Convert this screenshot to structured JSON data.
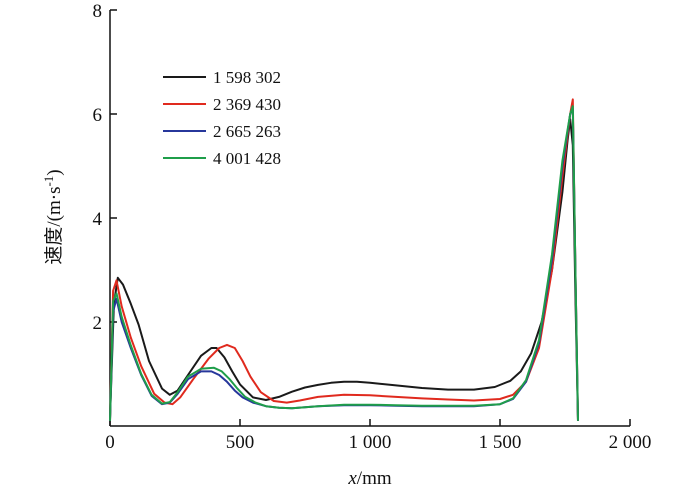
{
  "chart_data": {
    "type": "line",
    "xlabel_italic": "x",
    "xlabel_unit": "/mm",
    "ylabel_main": "速度/(m·s",
    "ylabel_sup": "-1",
    "ylabel_close": ")",
    "xlim": [
      0,
      2000
    ],
    "ylim": [
      0,
      8
    ],
    "xticks": [
      {
        "value": 0,
        "label": "0"
      },
      {
        "value": 500,
        "label": "500"
      },
      {
        "value": 1000,
        "label": "1 000"
      },
      {
        "value": 1500,
        "label": "1 500"
      },
      {
        "value": 2000,
        "label": "2 000"
      }
    ],
    "yticks": [
      {
        "value": 2,
        "label": "2"
      },
      {
        "value": 4,
        "label": "4"
      },
      {
        "value": 6,
        "label": "6"
      },
      {
        "value": 8,
        "label": "8"
      }
    ],
    "grid": false,
    "legend_position": "top-left",
    "series": [
      {
        "name": "1 598 302",
        "color": "#1a1a1a",
        "x": [
          0,
          15,
          30,
          50,
          80,
          110,
          150,
          200,
          230,
          260,
          300,
          350,
          390,
          410,
          440,
          470,
          500,
          550,
          600,
          650,
          700,
          750,
          800,
          850,
          900,
          950,
          1000,
          1100,
          1200,
          1300,
          1400,
          1480,
          1540,
          1580,
          1620,
          1660,
          1700,
          1740,
          1760,
          1770,
          1780,
          1790,
          1800
        ],
        "y": [
          0.15,
          2.35,
          2.85,
          2.72,
          2.35,
          1.95,
          1.25,
          0.72,
          0.6,
          0.68,
          0.98,
          1.35,
          1.5,
          1.5,
          1.32,
          1.05,
          0.8,
          0.55,
          0.5,
          0.56,
          0.66,
          0.74,
          0.79,
          0.83,
          0.85,
          0.85,
          0.83,
          0.78,
          0.73,
          0.7,
          0.7,
          0.75,
          0.87,
          1.05,
          1.4,
          2.0,
          3.0,
          4.5,
          5.5,
          5.9,
          5.4,
          2.5,
          0.1
        ]
      },
      {
        "name": "2 369 430",
        "color": "#e02a1e",
        "x": [
          0,
          12,
          25,
          45,
          80,
          120,
          170,
          210,
          240,
          270,
          320,
          380,
          420,
          450,
          480,
          510,
          540,
          580,
          630,
          680,
          730,
          800,
          900,
          1000,
          1100,
          1200,
          1300,
          1400,
          1500,
          1550,
          1600,
          1650,
          1700,
          1740,
          1770,
          1780,
          1790,
          1800
        ],
        "y": [
          0.1,
          2.6,
          2.8,
          2.3,
          1.7,
          1.15,
          0.62,
          0.45,
          0.42,
          0.55,
          0.9,
          1.3,
          1.5,
          1.56,
          1.5,
          1.25,
          0.95,
          0.65,
          0.48,
          0.45,
          0.49,
          0.56,
          0.6,
          0.59,
          0.56,
          0.53,
          0.51,
          0.49,
          0.52,
          0.6,
          0.85,
          1.5,
          3.0,
          4.8,
          6.0,
          6.28,
          3.0,
          0.1
        ]
      },
      {
        "name": "2 665 263",
        "color": "#27379b",
        "x": [
          0,
          12,
          25,
          45,
          80,
          120,
          160,
          200,
          230,
          260,
          300,
          350,
          390,
          420,
          450,
          480,
          510,
          550,
          600,
          650,
          700,
          800,
          900,
          1000,
          1100,
          1200,
          1300,
          1400,
          1500,
          1550,
          1600,
          1650,
          1700,
          1740,
          1770,
          1780,
          1790,
          1800
        ],
        "y": [
          0.1,
          2.2,
          2.45,
          2.0,
          1.5,
          0.98,
          0.58,
          0.42,
          0.45,
          0.62,
          0.9,
          1.05,
          1.05,
          0.98,
          0.85,
          0.68,
          0.55,
          0.45,
          0.38,
          0.35,
          0.34,
          0.38,
          0.4,
          0.4,
          0.39,
          0.38,
          0.38,
          0.38,
          0.42,
          0.52,
          0.85,
          1.6,
          3.2,
          5.0,
          6.0,
          6.1,
          3.0,
          0.1
        ]
      },
      {
        "name": "4 001 428",
        "color": "#1f9e4a",
        "x": [
          0,
          12,
          25,
          45,
          80,
          120,
          160,
          200,
          230,
          260,
          300,
          350,
          400,
          430,
          460,
          490,
          520,
          560,
          600,
          650,
          700,
          800,
          900,
          1000,
          1100,
          1200,
          1300,
          1400,
          1500,
          1550,
          1600,
          1650,
          1700,
          1740,
          1770,
          1780,
          1790,
          1800
        ],
        "y": [
          0.1,
          2.4,
          2.55,
          2.1,
          1.55,
          1.0,
          0.6,
          0.43,
          0.46,
          0.65,
          0.95,
          1.1,
          1.12,
          1.05,
          0.9,
          0.72,
          0.56,
          0.45,
          0.38,
          0.35,
          0.34,
          0.38,
          0.41,
          0.41,
          0.4,
          0.39,
          0.39,
          0.39,
          0.42,
          0.53,
          0.88,
          1.65,
          3.3,
          5.1,
          6.0,
          6.15,
          3.0,
          0.1
        ]
      }
    ]
  }
}
